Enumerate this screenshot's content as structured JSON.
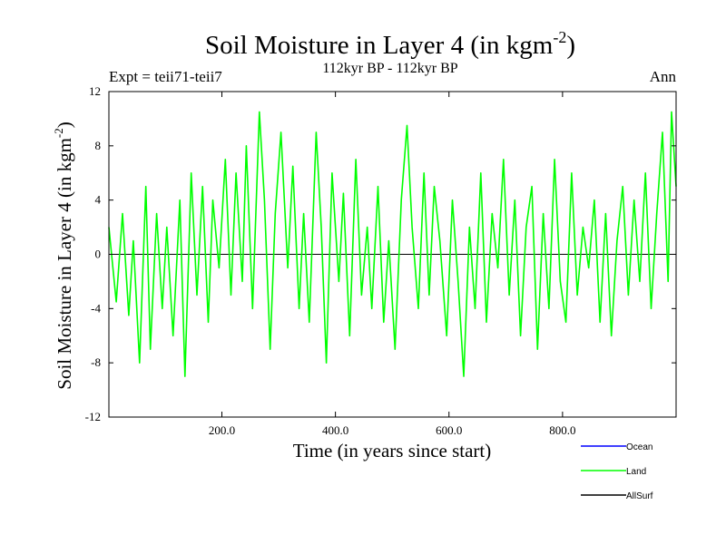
{
  "chart_data": {
    "type": "line",
    "title": {
      "main": "Soil Moisture in Layer 4 (in kgm",
      "sup": "-2",
      "end": ")"
    },
    "subtitle": "112kyr BP - 112kyr BP",
    "left_note": "Expt = teii71-teii7",
    "right_note": "Ann",
    "xlabel": "Time (in years since start)",
    "ylabel": {
      "main": "Soil Moisture in Layer 4 (in kgm",
      "sup": "-2",
      "end": ")"
    },
    "xlim": [
      1,
      1000
    ],
    "ylim": [
      -12,
      12
    ],
    "x_ticks": [
      200,
      400,
      600,
      800
    ],
    "x_tick_labels": [
      "200.0",
      "400.0",
      "600.0",
      "800.0"
    ],
    "y_ticks": [
      -12,
      -8,
      -4,
      0,
      4,
      8,
      12
    ],
    "y_tick_labels": [
      "-12",
      "-8",
      "-4",
      "0",
      "4",
      "8",
      "12"
    ],
    "legend": {
      "position": "bottom-right",
      "entries": [
        {
          "name": "Ocean",
          "color": "#0000ff"
        },
        {
          "name": "Land",
          "color": "#00ff00"
        },
        {
          "name": "AllSurf",
          "color": "#000000"
        }
      ]
    },
    "series": [
      {
        "name": "Land",
        "color": "#00ff00",
        "x": [
          1,
          14,
          25,
          36,
          44,
          55,
          66,
          74,
          85,
          95,
          103,
          114,
          126,
          135,
          146,
          156,
          166,
          176,
          184,
          195,
          206,
          216,
          225,
          236,
          243,
          254,
          266,
          275,
          285,
          294,
          304,
          316,
          325,
          336,
          344,
          354,
          366,
          375,
          384,
          394,
          406,
          414,
          425,
          436,
          446,
          456,
          464,
          475,
          485,
          494,
          505,
          516,
          526,
          535,
          546,
          556,
          565,
          574,
          584,
          596,
          606,
          616,
          626,
          636,
          646,
          656,
          666,
          676,
          686,
          696,
          706,
          716,
          726,
          736,
          746,
          756,
          766,
          776,
          786,
          796,
          806,
          816,
          826,
          836,
          846,
          856,
          866,
          876,
          886,
          896,
          906,
          916,
          926,
          936,
          946,
          956,
          966,
          976,
          986,
          992,
          1000
        ],
        "y": [
          2,
          -3.5,
          3,
          -4.5,
          1,
          -8,
          5,
          -7,
          3,
          -4,
          2,
          -6,
          4,
          -9,
          6,
          -3,
          5,
          -5,
          4,
          -1,
          7,
          -3,
          6,
          -2,
          8,
          -4,
          10.5,
          4,
          -7,
          3,
          9,
          -1,
          6.5,
          -4,
          3,
          -5,
          9,
          2,
          -8,
          6,
          -2,
          4.5,
          -6,
          7,
          -3,
          2,
          -4,
          5,
          -5,
          1,
          -7,
          4,
          9.5,
          2,
          -4,
          6,
          -3,
          5,
          1,
          -6,
          4,
          -2,
          -9,
          2,
          -4,
          6,
          -5,
          3,
          -1,
          7,
          -3,
          4,
          -6,
          2,
          5,
          -7,
          3,
          -4,
          7,
          -2,
          -5,
          6,
          -3,
          2,
          -1,
          4,
          -5,
          3,
          -6,
          1,
          5,
          -3,
          4,
          -2,
          6,
          -4,
          3,
          9,
          -2,
          10.5,
          5
        ]
      }
    ]
  }
}
